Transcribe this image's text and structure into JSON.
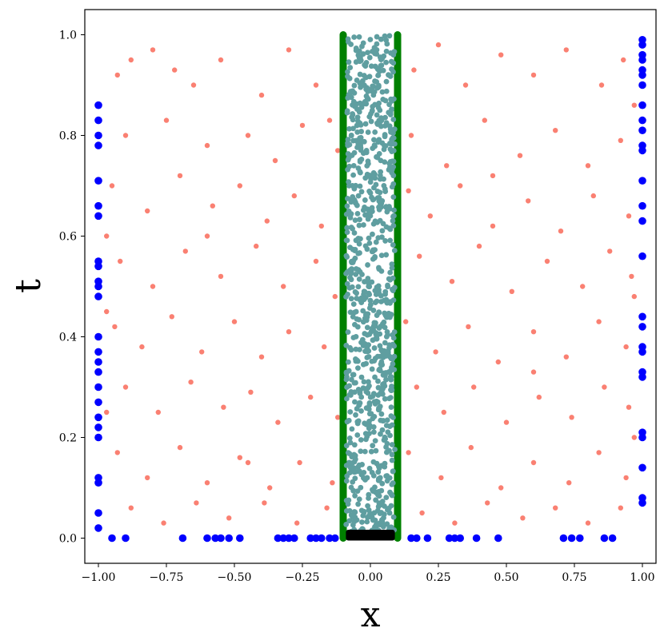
{
  "chart_data": {
    "type": "scatter",
    "title": "",
    "xlabel": "x",
    "ylabel": "t",
    "xlim": [
      -1.05,
      1.05
    ],
    "ylim": [
      -0.05,
      1.05
    ],
    "grid": false,
    "legend": "none",
    "x_ticks": [
      -1.0,
      -0.75,
      -0.5,
      -0.25,
      0.0,
      0.25,
      0.5,
      0.75,
      1.0
    ],
    "x_tick_labels": [
      "−1.00",
      "−0.75",
      "−0.50",
      "−0.25",
      "0.00",
      "0.25",
      "0.50",
      "0.75",
      "1.00"
    ],
    "y_ticks": [
      0.0,
      0.2,
      0.4,
      0.6,
      0.8,
      1.0
    ],
    "y_tick_labels": [
      "0.0",
      "0.2",
      "0.4",
      "0.6",
      "0.8",
      "1.0"
    ],
    "colors": {
      "collocation": "#fa8072",
      "boundary": "#0000ff",
      "interface_wall": "#008000",
      "interior": "#5f9ea0",
      "initial": "#000000"
    },
    "series": [
      {
        "role": "collocation",
        "marker": "point",
        "points": [
          [
            -0.93,
            0.92
          ],
          [
            -0.88,
            0.95
          ],
          [
            -0.8,
            0.97
          ],
          [
            -0.72,
            0.93
          ],
          [
            -0.65,
            0.9
          ],
          [
            -0.55,
            0.95
          ],
          [
            -0.4,
            0.88
          ],
          [
            -0.3,
            0.97
          ],
          [
            -0.2,
            0.9
          ],
          [
            -0.15,
            0.83
          ],
          [
            0.16,
            0.93
          ],
          [
            0.25,
            0.98
          ],
          [
            0.35,
            0.9
          ],
          [
            0.48,
            0.96
          ],
          [
            0.6,
            0.92
          ],
          [
            0.72,
            0.97
          ],
          [
            0.85,
            0.9
          ],
          [
            0.93,
            0.95
          ],
          [
            -0.9,
            0.8
          ],
          [
            -0.75,
            0.83
          ],
          [
            -0.6,
            0.78
          ],
          [
            -0.45,
            0.8
          ],
          [
            -0.35,
            0.75
          ],
          [
            -0.25,
            0.82
          ],
          [
            -0.12,
            0.77
          ],
          [
            0.15,
            0.8
          ],
          [
            0.28,
            0.74
          ],
          [
            0.42,
            0.83
          ],
          [
            0.55,
            0.76
          ],
          [
            0.68,
            0.81
          ],
          [
            0.8,
            0.74
          ],
          [
            0.92,
            0.79
          ],
          [
            -0.95,
            0.7
          ],
          [
            -0.82,
            0.65
          ],
          [
            -0.7,
            0.72
          ],
          [
            -0.58,
            0.66
          ],
          [
            -0.48,
            0.7
          ],
          [
            -0.38,
            0.63
          ],
          [
            -0.28,
            0.68
          ],
          [
            -0.18,
            0.62
          ],
          [
            0.14,
            0.69
          ],
          [
            0.22,
            0.64
          ],
          [
            0.33,
            0.7
          ],
          [
            0.45,
            0.62
          ],
          [
            0.58,
            0.67
          ],
          [
            0.7,
            0.61
          ],
          [
            0.82,
            0.68
          ],
          [
            0.95,
            0.64
          ],
          [
            -0.92,
            0.55
          ],
          [
            -0.8,
            0.5
          ],
          [
            -0.68,
            0.57
          ],
          [
            -0.55,
            0.52
          ],
          [
            -0.42,
            0.58
          ],
          [
            -0.32,
            0.5
          ],
          [
            -0.2,
            0.55
          ],
          [
            -0.13,
            0.48
          ],
          [
            0.18,
            0.56
          ],
          [
            0.3,
            0.51
          ],
          [
            0.4,
            0.58
          ],
          [
            0.52,
            0.49
          ],
          [
            0.65,
            0.55
          ],
          [
            0.78,
            0.5
          ],
          [
            0.88,
            0.57
          ],
          [
            0.96,
            0.52
          ],
          [
            -0.94,
            0.42
          ],
          [
            -0.84,
            0.38
          ],
          [
            -0.73,
            0.44
          ],
          [
            -0.62,
            0.37
          ],
          [
            -0.5,
            0.43
          ],
          [
            -0.4,
            0.36
          ],
          [
            -0.3,
            0.41
          ],
          [
            -0.17,
            0.38
          ],
          [
            0.13,
            0.43
          ],
          [
            0.24,
            0.37
          ],
          [
            0.36,
            0.42
          ],
          [
            0.47,
            0.35
          ],
          [
            0.6,
            0.41
          ],
          [
            0.72,
            0.36
          ],
          [
            0.84,
            0.43
          ],
          [
            0.94,
            0.38
          ],
          [
            -0.9,
            0.3
          ],
          [
            -0.78,
            0.25
          ],
          [
            -0.66,
            0.31
          ],
          [
            -0.54,
            0.26
          ],
          [
            -0.44,
            0.29
          ],
          [
            -0.34,
            0.23
          ],
          [
            -0.22,
            0.28
          ],
          [
            -0.12,
            0.24
          ],
          [
            0.17,
            0.3
          ],
          [
            0.27,
            0.25
          ],
          [
            0.38,
            0.3
          ],
          [
            0.5,
            0.23
          ],
          [
            0.62,
            0.28
          ],
          [
            0.74,
            0.24
          ],
          [
            0.86,
            0.3
          ],
          [
            0.95,
            0.26
          ],
          [
            -0.93,
            0.17
          ],
          [
            -0.82,
            0.12
          ],
          [
            -0.7,
            0.18
          ],
          [
            -0.6,
            0.11
          ],
          [
            -0.48,
            0.16
          ],
          [
            -0.37,
            0.1
          ],
          [
            -0.26,
            0.15
          ],
          [
            -0.14,
            0.11
          ],
          [
            0.14,
            0.17
          ],
          [
            0.26,
            0.12
          ],
          [
            0.37,
            0.18
          ],
          [
            0.48,
            0.1
          ],
          [
            0.6,
            0.15
          ],
          [
            0.73,
            0.11
          ],
          [
            0.84,
            0.17
          ],
          [
            0.94,
            0.12
          ],
          [
            -0.88,
            0.06
          ],
          [
            -0.76,
            0.03
          ],
          [
            -0.64,
            0.07
          ],
          [
            -0.52,
            0.04
          ],
          [
            -0.39,
            0.07
          ],
          [
            -0.27,
            0.03
          ],
          [
            -0.16,
            0.06
          ],
          [
            0.19,
            0.05
          ],
          [
            0.31,
            0.03
          ],
          [
            0.43,
            0.07
          ],
          [
            0.56,
            0.04
          ],
          [
            0.68,
            0.06
          ],
          [
            0.8,
            0.03
          ],
          [
            0.92,
            0.06
          ],
          [
            -0.97,
            0.6
          ],
          [
            -0.97,
            0.45
          ],
          [
            -0.97,
            0.25
          ],
          [
            0.97,
            0.48
          ],
          [
            0.97,
            0.2
          ],
          [
            0.97,
            0.86
          ],
          [
            -0.6,
            0.6
          ],
          [
            0.6,
            0.33
          ],
          [
            -0.45,
            0.15
          ],
          [
            0.45,
            0.72
          ]
        ]
      },
      {
        "role": "boundary",
        "marker": "dot",
        "points": [
          [
            -1,
            0.86
          ],
          [
            -1,
            0.83
          ],
          [
            -1,
            0.8
          ],
          [
            -1,
            0.78
          ],
          [
            -1,
            0.71
          ],
          [
            -1,
            0.66
          ],
          [
            -1,
            0.64
          ],
          [
            -1,
            0.55
          ],
          [
            -1,
            0.54
          ],
          [
            -1,
            0.51
          ],
          [
            -1,
            0.5
          ],
          [
            -1,
            0.48
          ],
          [
            -1,
            0.4
          ],
          [
            -1,
            0.37
          ],
          [
            -1,
            0.35
          ],
          [
            -1,
            0.33
          ],
          [
            -1,
            0.3
          ],
          [
            -1,
            0.27
          ],
          [
            -1,
            0.24
          ],
          [
            -1,
            0.22
          ],
          [
            -1,
            0.2
          ],
          [
            -1,
            0.12
          ],
          [
            -1,
            0.11
          ],
          [
            -1,
            0.05
          ],
          [
            -1,
            0.02
          ],
          [
            1,
            0.99
          ],
          [
            1,
            0.98
          ],
          [
            1,
            0.96
          ],
          [
            1,
            0.95
          ],
          [
            1,
            0.93
          ],
          [
            1,
            0.92
          ],
          [
            1,
            0.9
          ],
          [
            1,
            0.86
          ],
          [
            1,
            0.83
          ],
          [
            1,
            0.81
          ],
          [
            1,
            0.78
          ],
          [
            1,
            0.77
          ],
          [
            1,
            0.71
          ],
          [
            1,
            0.66
          ],
          [
            1,
            0.63
          ],
          [
            1,
            0.56
          ],
          [
            1,
            0.44
          ],
          [
            1,
            0.42
          ],
          [
            1,
            0.38
          ],
          [
            1,
            0.37
          ],
          [
            1,
            0.33
          ],
          [
            1,
            0.32
          ],
          [
            1,
            0.21
          ],
          [
            1,
            0.2
          ],
          [
            1,
            0.14
          ],
          [
            1,
            0.08
          ],
          [
            1,
            0.07
          ],
          [
            -0.95,
            0
          ],
          [
            -0.9,
            0
          ],
          [
            -0.69,
            0
          ],
          [
            -0.6,
            0
          ],
          [
            -0.57,
            0
          ],
          [
            -0.55,
            0
          ],
          [
            -0.52,
            0
          ],
          [
            -0.48,
            0
          ],
          [
            -0.34,
            0
          ],
          [
            -0.32,
            0
          ],
          [
            -0.3,
            0
          ],
          [
            -0.28,
            0
          ],
          [
            -0.22,
            0
          ],
          [
            -0.2,
            0
          ],
          [
            -0.18,
            0
          ],
          [
            -0.15,
            0
          ],
          [
            -0.13,
            0
          ],
          [
            0.15,
            0
          ],
          [
            0.17,
            0
          ],
          [
            0.21,
            0
          ],
          [
            0.29,
            0
          ],
          [
            0.31,
            0
          ],
          [
            0.33,
            0
          ],
          [
            0.39,
            0
          ],
          [
            0.47,
            0
          ],
          [
            0.71,
            0
          ],
          [
            0.74,
            0
          ],
          [
            0.77,
            0
          ],
          [
            0.86,
            0
          ],
          [
            0.89,
            0
          ]
        ]
      },
      {
        "role": "interface_wall",
        "marker": "line",
        "segments": [
          [
            [
              -0.1,
              0
            ],
            [
              -0.1,
              1
            ]
          ],
          [
            [
              0.1,
              0
            ],
            [
              0.1,
              1
            ]
          ]
        ]
      },
      {
        "role": "interior",
        "marker": "point",
        "x_range": [
          -0.09,
          0.09
        ],
        "y_range": [
          0.01,
          1.0
        ],
        "count": 900
      },
      {
        "role": "initial",
        "marker": "band",
        "x_range": [
          -0.09,
          0.09
        ],
        "y_range": [
          0.0,
          0.012
        ]
      }
    ]
  }
}
